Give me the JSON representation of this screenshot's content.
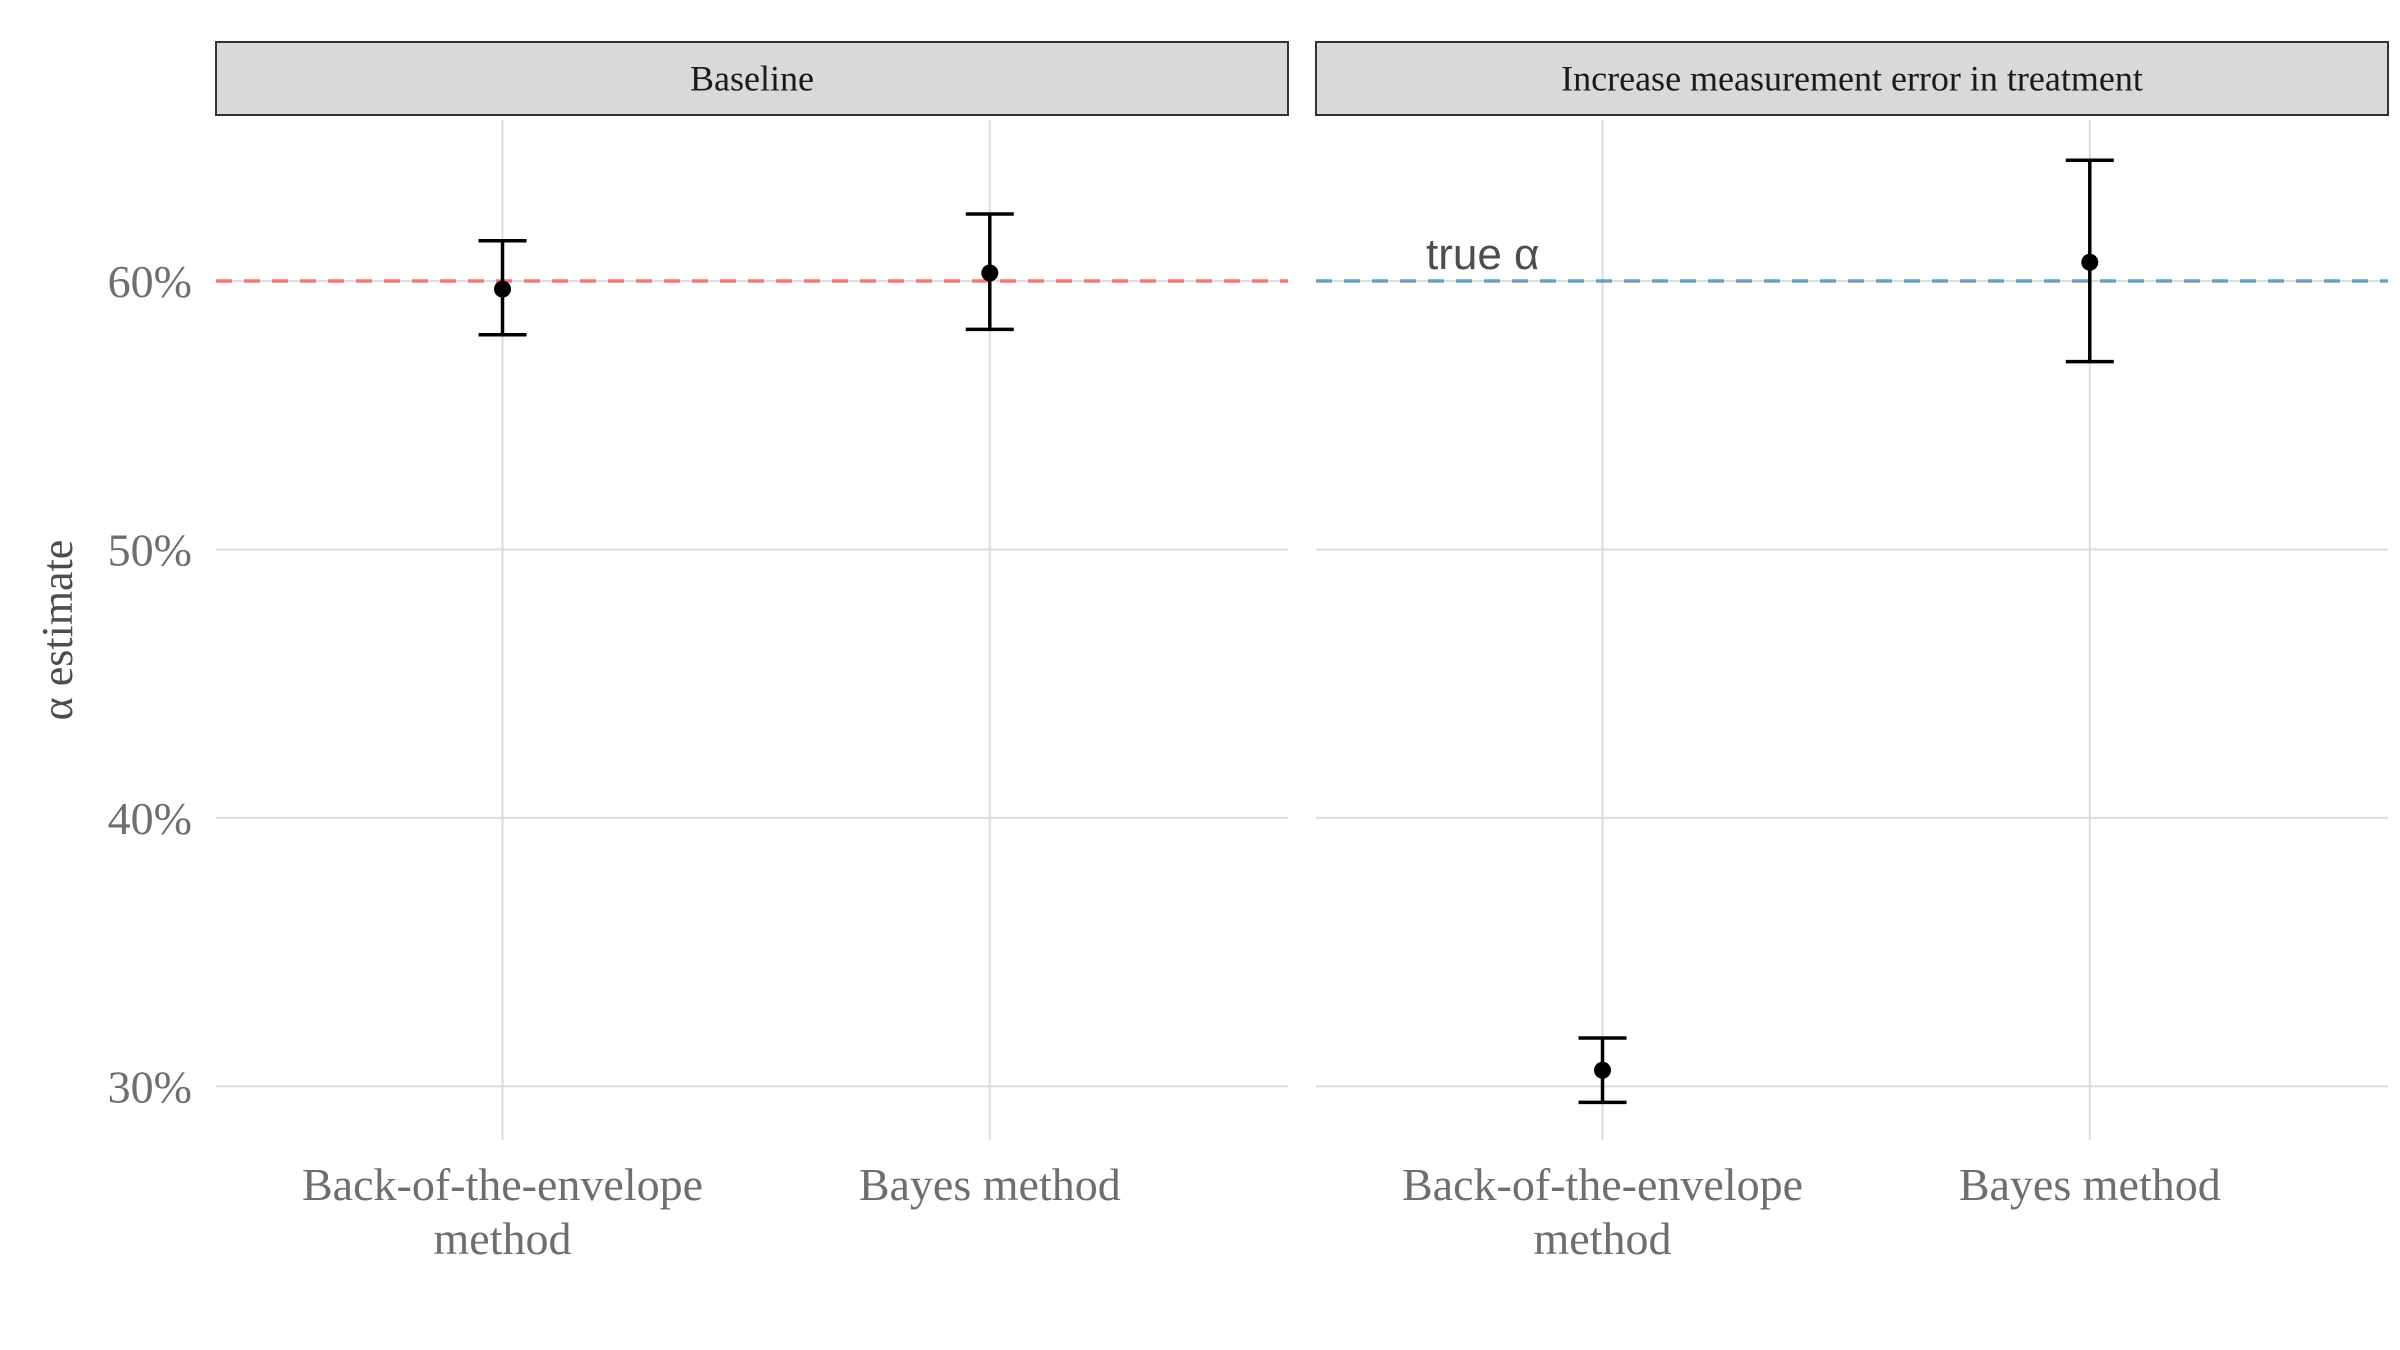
{
  "chart_data": {
    "type": "errorbar",
    "ylabel": "α estimate",
    "xlabel": "",
    "ylim": [
      0.28,
      0.66
    ],
    "yticks": [
      0.3,
      0.4,
      0.5,
      0.6
    ],
    "ytick_labels": [
      "30%",
      "40%",
      "50%",
      "60%"
    ],
    "categories": [
      [
        "Back-of-the-envelope",
        "method"
      ],
      [
        "Bayes method"
      ]
    ],
    "panels": [
      {
        "title": "Baseline",
        "reference_line": {
          "value": 0.6,
          "color": "#f8766d",
          "label": ""
        },
        "points": [
          {
            "category": 0,
            "estimate": 0.597,
            "lower": 0.58,
            "upper": 0.615
          },
          {
            "category": 1,
            "estimate": 0.603,
            "lower": 0.582,
            "upper": 0.625
          }
        ]
      },
      {
        "title": "Increase measurement error in treatment",
        "reference_line": {
          "value": 0.6,
          "color": "#6a9fc0",
          "label": "true α"
        },
        "points": [
          {
            "category": 0,
            "estimate": 0.306,
            "lower": 0.294,
            "upper": 0.318
          },
          {
            "category": 1,
            "estimate": 0.607,
            "lower": 0.57,
            "upper": 0.645
          }
        ]
      }
    ]
  }
}
